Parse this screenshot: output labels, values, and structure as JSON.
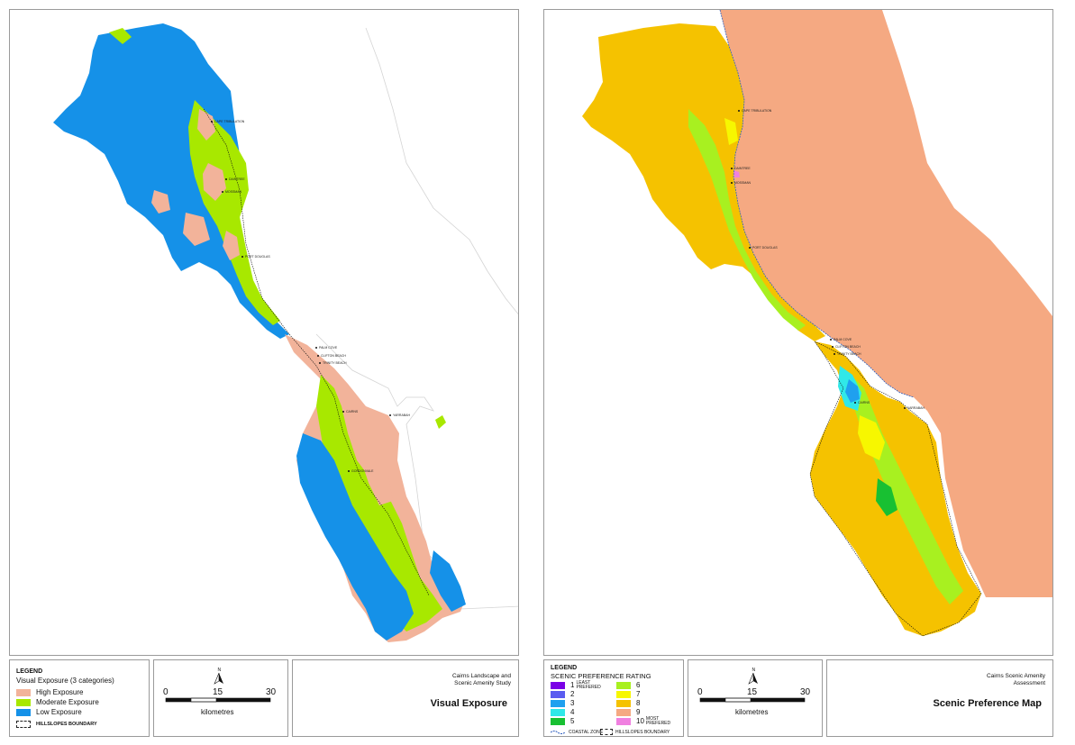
{
  "colors": {
    "high_exposure": "#f2b39a",
    "moderate_exposure": "#a8e800",
    "low_exposure": "#1591e8",
    "outline": "#cccccc",
    "pref_1": "#7a00e6",
    "pref_2": "#5a5cf0",
    "pref_3": "#1fa0ef",
    "pref_4": "#30e8e8",
    "pref_5": "#18c032",
    "pref_6": "#a8f020",
    "pref_7": "#f7f700",
    "pref_8": "#f5c200",
    "pref_9": "#f5a982",
    "pref_10": "#f080e0",
    "coastal_zone": "#3060c0"
  },
  "left_map": {
    "legend": {
      "heading": "LEGEND",
      "subheading": "Visual Exposure (3 categories)",
      "items": [
        {
          "label": "High Exposure",
          "color_key": "high_exposure"
        },
        {
          "label": "Moderate Exposure",
          "color_key": "moderate_exposure"
        },
        {
          "label": "Low Exposure",
          "color_key": "low_exposure"
        }
      ],
      "boundary_label": "HILLSLOPES BOUNDARY"
    },
    "scale": {
      "ticks": [
        "0",
        "15",
        "30"
      ],
      "unit": "kilometres"
    },
    "study_name_line1": "Cairns Landscape and",
    "study_name_line2": "Scenic Amenity Study",
    "title": "Visual Exposure",
    "places": [
      "CAPE TRIBULATION",
      "DAINTREE",
      "MOSSMAN",
      "PORT DOUGLAS",
      "PALM COVE",
      "CLIFTON BEACH",
      "TRINITY BEACH",
      "CAIRNS",
      "GORDONVALE",
      "YARRABAH"
    ]
  },
  "right_map": {
    "legend": {
      "heading": "LEGEND",
      "subheading": "SCENIC PREFERENCE RATING",
      "items": [
        {
          "num": "1",
          "note": "LEAST PREFERED",
          "color_key": "pref_1"
        },
        {
          "num": "2",
          "note": "",
          "color_key": "pref_2"
        },
        {
          "num": "3",
          "note": "",
          "color_key": "pref_3"
        },
        {
          "num": "4",
          "note": "",
          "color_key": "pref_4"
        },
        {
          "num": "5",
          "note": "",
          "color_key": "pref_5"
        },
        {
          "num": "6",
          "note": "",
          "color_key": "pref_6"
        },
        {
          "num": "7",
          "note": "",
          "color_key": "pref_7"
        },
        {
          "num": "8",
          "note": "",
          "color_key": "pref_8"
        },
        {
          "num": "9",
          "note": "",
          "color_key": "pref_9"
        },
        {
          "num": "10",
          "note": "MOST PREFERED",
          "color_key": "pref_10"
        }
      ],
      "coastal_label": "COASTAL ZONE",
      "boundary_label": "HILLSLOPES BOUNDARY"
    },
    "scale": {
      "ticks": [
        "0",
        "15",
        "30"
      ],
      "unit": "kilometres"
    },
    "study_name_line1": "Cairns Scenic Amenity",
    "study_name_line2": "Assessment",
    "title": "Scenic Preference Map",
    "places": [
      "CAPE TRIBULATION",
      "DAINTREE",
      "MOSSMAN",
      "PORT DOUGLAS",
      "PALM COVE",
      "CLIFTON BEACH",
      "TRINITY BEACH",
      "CAIRNS",
      "YARRABAH"
    ]
  }
}
